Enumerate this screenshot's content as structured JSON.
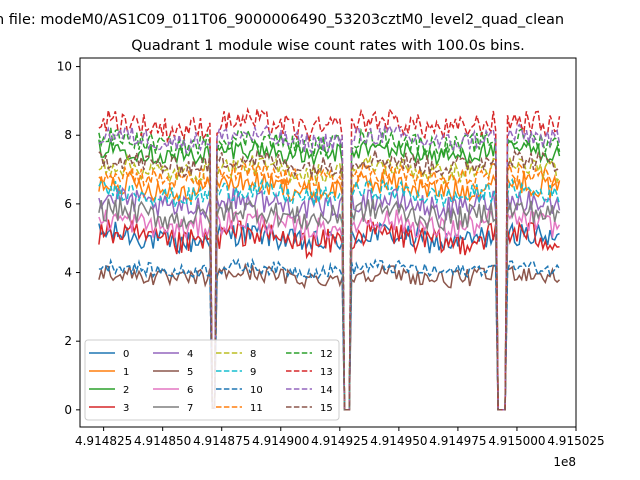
{
  "chart_data": {
    "type": "line",
    "suptitle": "n file: modeM0/AS1C09_011T06_9000006490_53203cztM0_level2_quad_clean",
    "title": "Quadrant 1 module wise count rates with 100.0s bins.",
    "xlabel": "",
    "ylabel": "",
    "x_offset_label": "1e8",
    "x_unit_scale": 100000000,
    "xlim": [
      491481500,
      491502500
    ],
    "ylim": [
      -0.5,
      10.25
    ],
    "x_tick_values": [
      491482500,
      491485000,
      491487500,
      491490000,
      491492500,
      491495000,
      491497500,
      491500000,
      491502500
    ],
    "x_tick_labels": [
      "4.914825",
      "4.914850",
      "4.914875",
      "4.914900",
      "4.914925",
      "4.914950",
      "4.914975",
      "4.915000",
      "4.915025"
    ],
    "y_tick_values": [
      0,
      2,
      4,
      6,
      8,
      10
    ],
    "y_tick_labels": [
      "0",
      "2",
      "4",
      "6",
      "8",
      "10"
    ],
    "x_start": 491482300,
    "x_end": 491501800,
    "bin_seconds": 100,
    "dropouts": [
      {
        "from": 491487050,
        "to": 491487250,
        "value": 0.05
      },
      {
        "from": 491492650,
        "to": 491492950,
        "value": 0
      },
      {
        "from": 491499150,
        "to": 491499550,
        "value": 0
      }
    ],
    "grid": false,
    "legend": {
      "position": "lower-left",
      "columns": 4
    },
    "series": [
      {
        "name": "0",
        "color": "#1f77b4",
        "style": "solid",
        "base": 5.0,
        "noise": 0.35
      },
      {
        "name": "1",
        "color": "#ff7f0e",
        "style": "solid",
        "base": 6.5,
        "noise": 0.35
      },
      {
        "name": "2",
        "color": "#2ca02c",
        "style": "solid",
        "base": 7.5,
        "noise": 0.3
      },
      {
        "name": "3",
        "color": "#d62728",
        "style": "solid",
        "base": 5.0,
        "noise": 0.4
      },
      {
        "name": "4",
        "color": "#9467bd",
        "style": "solid",
        "base": 6.0,
        "noise": 0.35
      },
      {
        "name": "5",
        "color": "#8c564b",
        "style": "solid",
        "base": 3.9,
        "noise": 0.25
      },
      {
        "name": "6",
        "color": "#e377c2",
        "style": "solid",
        "base": 5.4,
        "noise": 0.35
      },
      {
        "name": "7",
        "color": "#7f7f7f",
        "style": "solid",
        "base": 5.7,
        "noise": 0.35
      },
      {
        "name": "8",
        "color": "#bcbd22",
        "style": "dashed",
        "base": 7.0,
        "noise": 0.3
      },
      {
        "name": "9",
        "color": "#17becf",
        "style": "dashed",
        "base": 6.3,
        "noise": 0.3
      },
      {
        "name": "10",
        "color": "#1f77b4",
        "style": "dashed",
        "base": 4.1,
        "noise": 0.2
      },
      {
        "name": "11",
        "color": "#ff7f0e",
        "style": "dashed",
        "base": 6.8,
        "noise": 0.3
      },
      {
        "name": "12",
        "color": "#2ca02c",
        "style": "dashed",
        "base": 7.8,
        "noise": 0.3
      },
      {
        "name": "13",
        "color": "#d62728",
        "style": "dashed",
        "base": 8.3,
        "noise": 0.35
      },
      {
        "name": "14",
        "color": "#9467bd",
        "style": "dashed",
        "base": 7.9,
        "noise": 0.3
      },
      {
        "name": "15",
        "color": "#8c564b",
        "style": "dashed",
        "base": 7.2,
        "noise": 0.3
      }
    ]
  }
}
